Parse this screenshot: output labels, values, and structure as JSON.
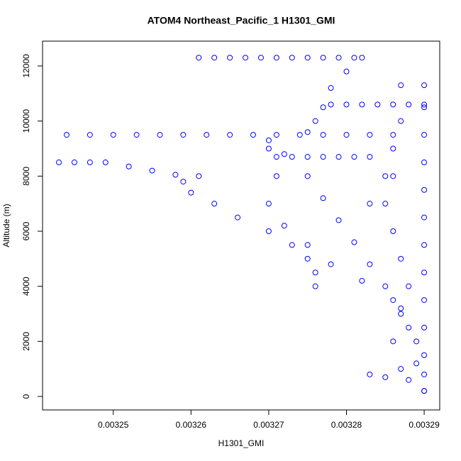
{
  "chart_data": {
    "type": "scatter",
    "title": "ATOM4 Northeast_Pacific_1 H1301_GMI",
    "x_label": "H1301_GMI",
    "y_label": "Altitude (m)",
    "xlim": [
      0.0032409,
      0.003292
    ],
    "ylim": [
      -489,
      12901
    ],
    "xticks": [
      0.00325,
      0.00326,
      0.00327,
      0.00328,
      0.00329
    ],
    "yticks": [
      0,
      2000,
      4000,
      6000,
      8000,
      10000,
      12000
    ],
    "series": [
      {
        "color": "#0000ff",
        "x": [
          0.003261,
          0.003263,
          0.003265,
          0.003267,
          0.003269,
          0.003271,
          0.003273,
          0.003275,
          0.003277,
          0.003279,
          0.003281,
          0.003282,
          0.00328,
          0.003278,
          0.003277,
          0.003276,
          0.003275,
          0.003244,
          0.003247,
          0.00325,
          0.003253,
          0.003256,
          0.003259,
          0.003262,
          0.003265,
          0.003268,
          0.003271,
          0.003274,
          0.003277,
          0.00328,
          0.003283,
          0.003286,
          0.003243,
          0.003245,
          0.003247,
          0.003249,
          0.003252,
          0.003255,
          0.003258,
          0.003261,
          0.003259,
          0.00326,
          0.003263,
          0.003266,
          0.00327,
          0.003273,
          0.003275,
          0.003276,
          0.003276,
          0.003278,
          0.00328,
          0.003282,
          0.003284,
          0.003286,
          0.003288,
          0.00329,
          0.003271,
          0.003273,
          0.003275,
          0.003277,
          0.003279,
          0.003281,
          0.003283,
          0.003285,
          0.003283,
          0.00329,
          0.00329,
          0.00329,
          0.00329,
          0.00329,
          0.00329,
          0.00329,
          0.00329,
          0.00329,
          0.00329,
          0.00329,
          0.00329,
          0.00329,
          0.003287,
          0.003287,
          0.003286,
          0.003286,
          0.003285,
          0.003286,
          0.003287,
          0.003288,
          0.003287,
          0.003286,
          0.003287,
          0.00327,
          0.003272,
          0.003275,
          0.003277,
          0.003279,
          0.003281,
          0.003283,
          0.003285,
          0.003287,
          0.003289,
          0.00329,
          0.00327,
          0.003271,
          0.00327,
          0.003272,
          0.003275,
          0.003278,
          0.003282,
          0.003286,
          0.003288,
          0.003289,
          0.003283,
          0.003285,
          0.003288
        ],
        "y": [
          12300,
          12300,
          12300,
          12300,
          12300,
          12300,
          12300,
          12300,
          12300,
          12300,
          12300,
          12300,
          11800,
          11200,
          10500,
          10000,
          9600,
          9500,
          9500,
          9500,
          9500,
          9500,
          9500,
          9500,
          9500,
          9500,
          9500,
          9500,
          9500,
          9500,
          9500,
          9500,
          8500,
          8500,
          8500,
          8500,
          8350,
          8200,
          8050,
          8000,
          7800,
          7400,
          7000,
          6500,
          6000,
          5500,
          5000,
          4500,
          4000,
          10600,
          10600,
          10600,
          10600,
          10600,
          10600,
          10600,
          8700,
          8700,
          8700,
          8700,
          8700,
          8700,
          8700,
          8000,
          7000,
          11300,
          10500,
          9500,
          8500,
          7500,
          6500,
          5500,
          4500,
          3500,
          2500,
          1500,
          800,
          200,
          11300,
          10000,
          9000,
          8000,
          7000,
          6000,
          5000,
          4000,
          3000,
          2000,
          1000,
          9300,
          8800,
          8000,
          7200,
          6400,
          5600,
          4800,
          4000,
          3200,
          2000,
          200,
          9000,
          8000,
          7000,
          6200,
          5500,
          4800,
          4200,
          3500,
          2500,
          1200,
          800,
          700,
          600
        ]
      }
    ]
  }
}
